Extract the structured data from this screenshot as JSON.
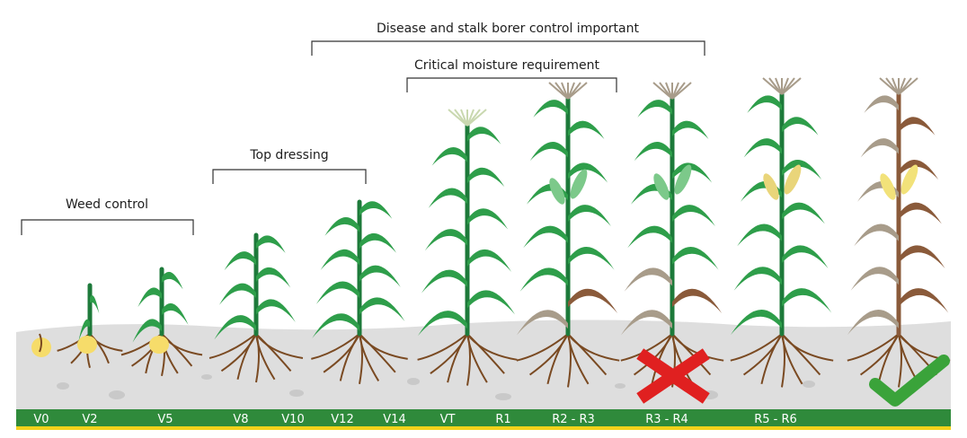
{
  "brackets": {
    "weed_control": "Weed control",
    "top_dressing": "Top dressing",
    "critical_moisture": "Critical moisture requirement",
    "disease_stalk_borer": "Disease and stalk borer control important"
  },
  "stages": [
    "V0",
    "V2",
    "V5",
    "V8",
    "V10",
    "V12",
    "V14",
    "VT",
    "R1",
    "R2 - R3",
    "R3 - R4",
    "R5 - R6"
  ],
  "status_marks": {
    "r3_r4": "cross-icon",
    "r5_r6": "check-icon"
  },
  "colors": {
    "leaf_green": "#2e9e4a",
    "stalk_green": "#1d7a3a",
    "band_green": "#2f8a3b",
    "band_yellow": "#f3d21b",
    "soil": "#dedede",
    "root_brown": "#7a4a22",
    "seed_yellow": "#f6dc6a",
    "tassel": "#c9d8b0",
    "senescent_brown": "#8a5a3a",
    "dry_grey": "#a89c8a",
    "cross_red": "#e02020",
    "check_green": "#3aa33a"
  }
}
